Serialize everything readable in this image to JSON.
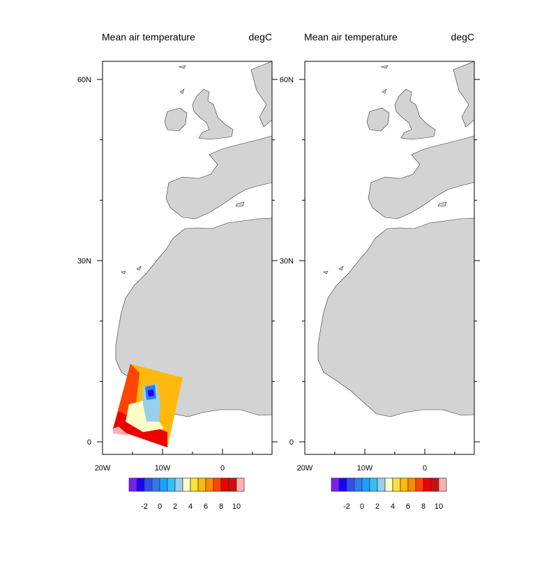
{
  "panels": [
    {
      "title_left": "Mean air temperature",
      "title_right": "degC",
      "data_region": "south"
    },
    {
      "title_left": "Mean air temperature",
      "title_right": "degC",
      "data_region": "north"
    }
  ],
  "chart_data": {
    "type": "heatmap",
    "lat_ticks": [
      {
        "value": 0,
        "label": "0"
      },
      {
        "value": 30,
        "label": "30N"
      },
      {
        "value": 60,
        "label": "60N"
      }
    ],
    "lon_ticks": [
      {
        "value": -20,
        "label": "20W"
      },
      {
        "value": -10,
        "label": "10W"
      },
      {
        "value": 0,
        "label": "0"
      }
    ],
    "lon_range": [
      -20,
      8.2
    ],
    "lat_range": [
      -2,
      63
    ],
    "land_color": "#d3d3d3",
    "colorbar": {
      "levels": [
        -3,
        -2,
        -1,
        0,
        1,
        2,
        3,
        4,
        5,
        6,
        7,
        8,
        9,
        10
      ],
      "labels": [
        "-2",
        "0",
        "2",
        "4",
        "6",
        "8",
        "10"
      ],
      "label_values": [
        -2,
        0,
        2,
        4,
        6,
        8,
        10
      ],
      "colors": [
        "#7b1fee",
        "#1a00ff",
        "#3050e8",
        "#2e7bef",
        "#1aa0ff",
        "#30c0f8",
        "#96d0ee",
        "#ffffc8",
        "#ffe040",
        "#ffb80e",
        "#ff8a00",
        "#ff4500",
        "#ee0000",
        "#cc1010",
        "#ffb0b0"
      ]
    }
  }
}
